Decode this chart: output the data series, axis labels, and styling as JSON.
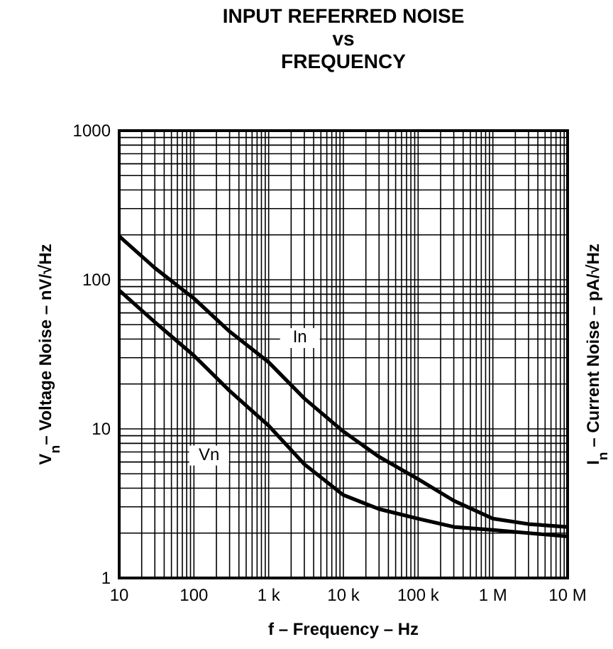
{
  "chart_data": {
    "type": "line",
    "title": "INPUT REFERRED NOISE\nvs\nFREQUENCY",
    "xlabel": "f – Frequency – Hz",
    "ylabel": "V$_{n}$– Voltage Noise – nV/√Hz",
    "y2label": "I$_{n}$ – Current Noise – pA/√Hz",
    "log": "xy",
    "grid": true,
    "line_style": "solid",
    "marker": "none",
    "xlim": [
      10,
      10000000
    ],
    "xticks": [
      10,
      100,
      {
        "value": 1000,
        "label": "1 k"
      },
      {
        "value": 10000,
        "label": "10 k"
      },
      {
        "value": 100000,
        "label": "100 k"
      },
      {
        "value": 1000000,
        "label": "1 M"
      },
      {
        "value": 10000000,
        "label": "10 M"
      }
    ],
    "ylim": [
      1,
      1000
    ],
    "yticks": [
      1,
      10,
      100,
      1000
    ],
    "series": [
      {
        "name": "In",
        "color": "#000000",
        "x": [
          10,
          30,
          100,
          300,
          1000,
          3000,
          10000,
          30000,
          100000,
          300000,
          1000000,
          3000000,
          10000000
        ],
        "values": [
          196,
          120,
          75,
          45,
          28,
          16,
          9.6,
          6.5,
          4.6,
          3.3,
          2.5,
          2.3,
          2.2
        ]
      },
      {
        "name": "Vn",
        "color": "#000000",
        "x": [
          10,
          30,
          100,
          300,
          1000,
          3000,
          10000,
          30000,
          100000,
          300000,
          1000000,
          3000000,
          10000000
        ],
        "values": [
          85,
          52,
          31,
          18,
          10.5,
          5.8,
          3.6,
          2.9,
          2.5,
          2.2,
          2.1,
          2.0,
          1.9
        ]
      }
    ]
  }
}
